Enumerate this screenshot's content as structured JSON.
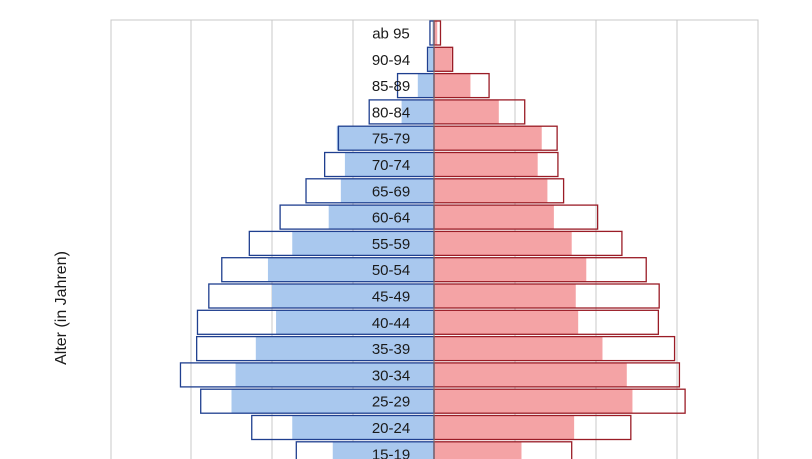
{
  "chart_data": {
    "type": "bar",
    "orientation": "horizontal-pyramid",
    "ylabel": "Alter (in Jahren)",
    "categories": [
      "ab 95",
      "90-94",
      "85-89",
      "80-84",
      "75-79",
      "70-74",
      "65-69",
      "60-64",
      "55-59",
      "50-54",
      "45-49",
      "40-44",
      "35-39",
      "30-34",
      "25-29",
      "20-24",
      "15-19"
    ],
    "xlim": [
      -400,
      400
    ],
    "grid": true,
    "series": [
      {
        "side": "left",
        "style": "filled",
        "values": [
          2,
          7,
          20,
          40,
          120,
          110,
          115,
          130,
          175,
          205,
          200,
          195,
          220,
          245,
          250,
          175,
          125
        ]
      },
      {
        "side": "right",
        "style": "filled",
        "values": [
          4,
          22,
          45,
          80,
          133,
          128,
          140,
          148,
          170,
          188,
          175,
          178,
          208,
          238,
          245,
          173,
          108
        ]
      },
      {
        "side": "left",
        "style": "outline",
        "values": [
          5,
          8,
          45,
          80,
          118,
          135,
          158,
          190,
          228,
          262,
          278,
          292,
          293,
          313,
          288,
          225,
          170
        ]
      },
      {
        "side": "right",
        "style": "outline",
        "values": [
          8,
          23,
          68,
          112,
          152,
          153,
          160,
          202,
          232,
          262,
          278,
          277,
          297,
          303,
          310,
          243,
          170
        ]
      }
    ],
    "colors": {
      "left_fill": "#a9c8ee",
      "right_fill": "#f4a3a5",
      "left_outline": "#1f3f8f",
      "right_outline": "#9a1c26",
      "grid": "#c8c8c8"
    }
  }
}
